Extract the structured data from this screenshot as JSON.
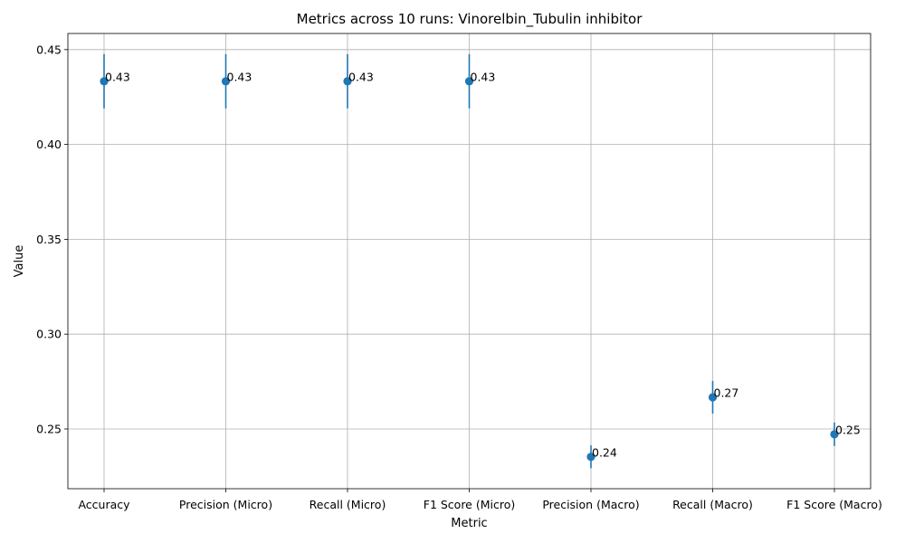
{
  "chart_data": {
    "type": "scatter",
    "title": "Metrics across 10 runs: Vinorelbin_Tubulin inhibitor",
    "xlabel": "Metric",
    "ylabel": "Value",
    "categories": [
      "Accuracy",
      "Precision (Micro)",
      "Recall (Micro)",
      "F1 Score (Micro)",
      "Precision (Macro)",
      "Recall (Macro)",
      "F1 Score (Macro)"
    ],
    "values": [
      0.4333,
      0.4333,
      0.4333,
      0.4333,
      0.2353,
      0.2667,
      0.2472
    ],
    "error": [
      0.0143,
      0.0143,
      0.0143,
      0.0143,
      0.006,
      0.0086,
      0.0062
    ],
    "value_labels": [
      "0.43",
      "0.43",
      "0.43",
      "0.43",
      "0.24",
      "0.27",
      "0.25"
    ],
    "ylim": [
      0.2185,
      0.4585
    ],
    "yticks": [
      0.25,
      0.3,
      0.35,
      0.4,
      0.45
    ],
    "ytick_labels": [
      "0.25",
      "0.30",
      "0.35",
      "0.40",
      "0.45"
    ],
    "grid": true,
    "color": "#1f77b4"
  }
}
